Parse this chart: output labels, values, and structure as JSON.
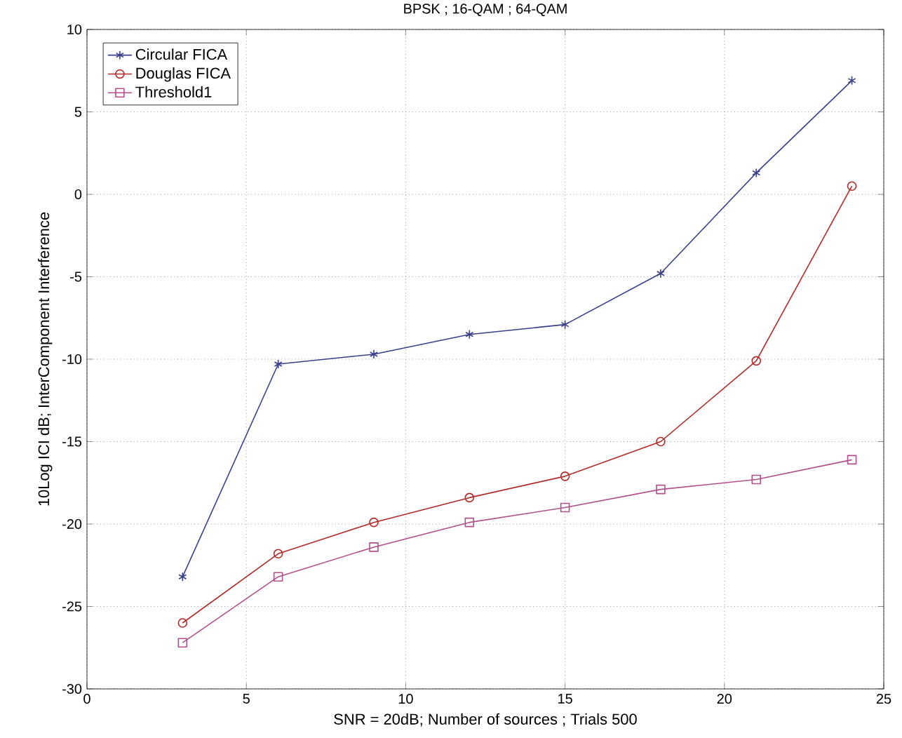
{
  "chart_data": {
    "type": "line",
    "title": "BPSK ; 16-QAM ; 64-QAM",
    "xlabel": "SNR = 20dB; Number of sources ; Trials 500",
    "ylabel": "10Log ICI dB; InterComponent Interference",
    "x": [
      3,
      6,
      9,
      12,
      15,
      18,
      21,
      24
    ],
    "series": [
      {
        "name": "Circular FICA",
        "color": "#3a3f8a",
        "marker": "cross",
        "values": [
          -23.2,
          -10.3,
          -9.7,
          -8.5,
          -7.9,
          -4.8,
          1.3,
          6.9
        ]
      },
      {
        "name": "Douglas FICA",
        "color": "#b02a2a",
        "marker": "circle",
        "values": [
          -26.0,
          -21.8,
          -19.9,
          -18.4,
          -17.1,
          -15.0,
          -10.1,
          0.5
        ]
      },
      {
        "name": "Threshold1",
        "color": "#b0508a",
        "marker": "square",
        "values": [
          -27.2,
          -23.2,
          -21.4,
          -19.9,
          -19.0,
          -17.9,
          -17.3,
          -16.1
        ]
      }
    ],
    "xlim": [
      0,
      25
    ],
    "xticks": [
      0,
      5,
      10,
      15,
      20,
      25
    ],
    "ylim": [
      -30,
      10
    ],
    "yticks": [
      -30,
      -25,
      -20,
      -15,
      -10,
      -5,
      0,
      5,
      10
    ],
    "grid": true,
    "legend": "top left",
    "line_style": "solid"
  }
}
